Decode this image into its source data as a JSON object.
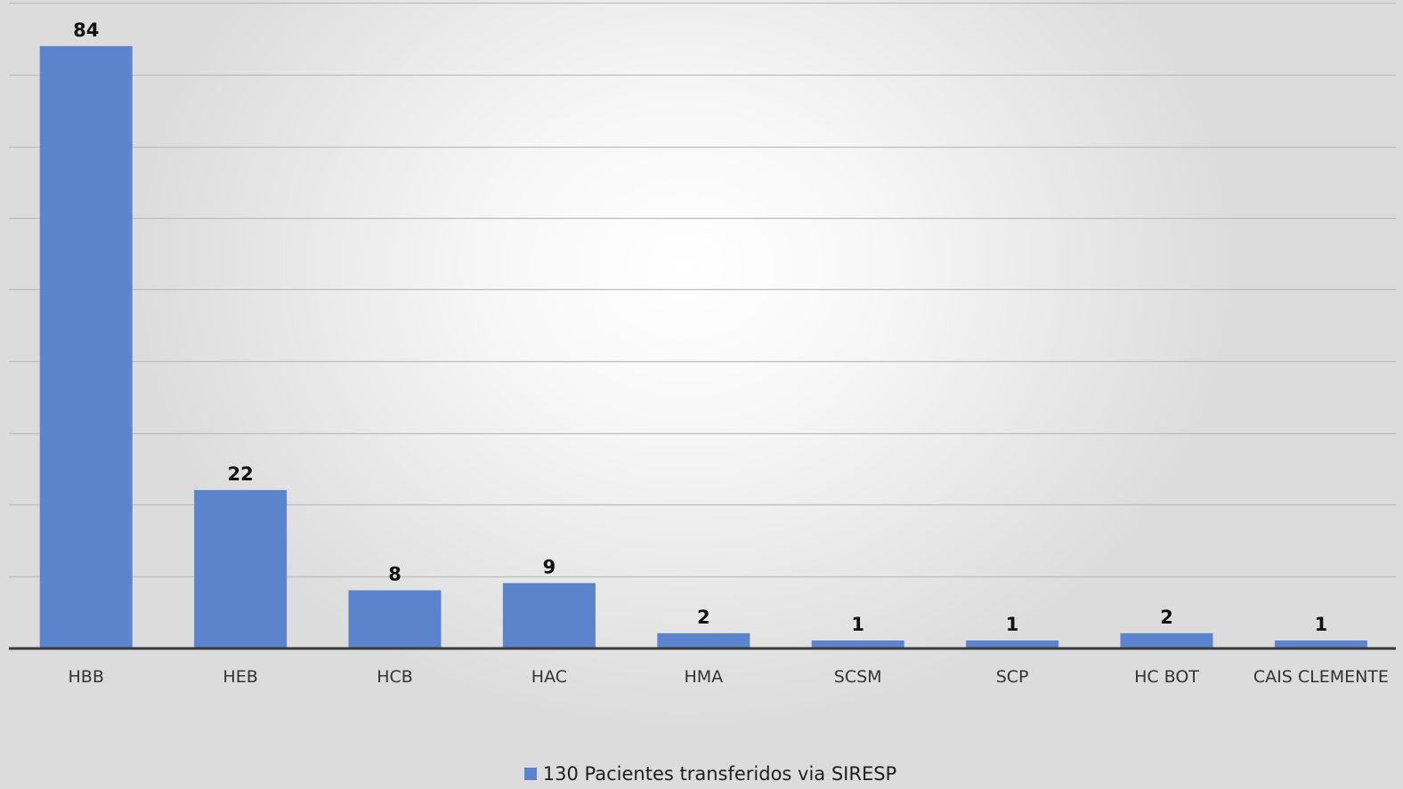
{
  "colors": {
    "bar": "#5b84cd",
    "gridline": "#bdbdbd",
    "axis": "#3a3a3a",
    "label": "#111111",
    "tick_label": "#333333"
  },
  "chart_data": {
    "type": "bar",
    "categories": [
      "HBB",
      "HEB",
      "HCB",
      "HAC",
      "HMA",
      "SCSM",
      "SCP",
      "HC BOT",
      "CAIS CLEMENTE"
    ],
    "series": [
      {
        "name": "130 Pacientes transferidos via SIRESP",
        "values": [
          84,
          22,
          8,
          9,
          2,
          1,
          1,
          2,
          1
        ]
      }
    ],
    "data_labels": [
      "84",
      "22",
      "8",
      "9",
      "2",
      "1",
      "1",
      "2",
      "1"
    ],
    "title": "",
    "xlabel": "",
    "ylabel": "",
    "ylim": [
      0,
      90
    ],
    "y_gridline_step": 10,
    "y_tick_labels_visible": false,
    "grid": true,
    "legend_position": "bottom"
  },
  "legend": {
    "label": "130 Pacientes transferidos via SIRESP"
  }
}
